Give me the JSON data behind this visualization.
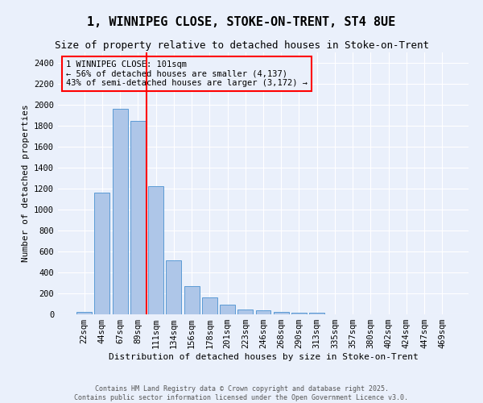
{
  "title": "1, WINNIPEG CLOSE, STOKE-ON-TRENT, ST4 8UE",
  "subtitle": "Size of property relative to detached houses in Stoke-on-Trent",
  "xlabel": "Distribution of detached houses by size in Stoke-on-Trent",
  "ylabel": "Number of detached properties",
  "categories": [
    "22sqm",
    "44sqm",
    "67sqm",
    "89sqm",
    "111sqm",
    "134sqm",
    "156sqm",
    "178sqm",
    "201sqm",
    "223sqm",
    "246sqm",
    "268sqm",
    "290sqm",
    "313sqm",
    "335sqm",
    "357sqm",
    "380sqm",
    "402sqm",
    "424sqm",
    "447sqm",
    "469sqm"
  ],
  "values": [
    25,
    1160,
    1960,
    1850,
    1225,
    515,
    270,
    158,
    90,
    48,
    40,
    22,
    18,
    12,
    0,
    0,
    0,
    0,
    0,
    0,
    0
  ],
  "bar_color": "#aec6e8",
  "bar_edge_color": "#5b9bd5",
  "vline_x_index": 3.5,
  "vline_color": "red",
  "annotation_text": "1 WINNIPEG CLOSE: 101sqm\n← 56% of detached houses are smaller (4,137)\n43% of semi-detached houses are larger (3,172) →",
  "annotation_box_color": "red",
  "bg_color": "#eaf0fb",
  "grid_color": "#ffffff",
  "ylim": [
    0,
    2500
  ],
  "yticks": [
    0,
    200,
    400,
    600,
    800,
    1000,
    1200,
    1400,
    1600,
    1800,
    2000,
    2200,
    2400
  ],
  "footer_line1": "Contains HM Land Registry data © Crown copyright and database right 2025.",
  "footer_line2": "Contains public sector information licensed under the Open Government Licence v3.0.",
  "title_fontsize": 11,
  "subtitle_fontsize": 9,
  "axis_label_fontsize": 8,
  "tick_fontsize": 7.5,
  "annotation_fontsize": 7.5,
  "footer_fontsize": 6
}
